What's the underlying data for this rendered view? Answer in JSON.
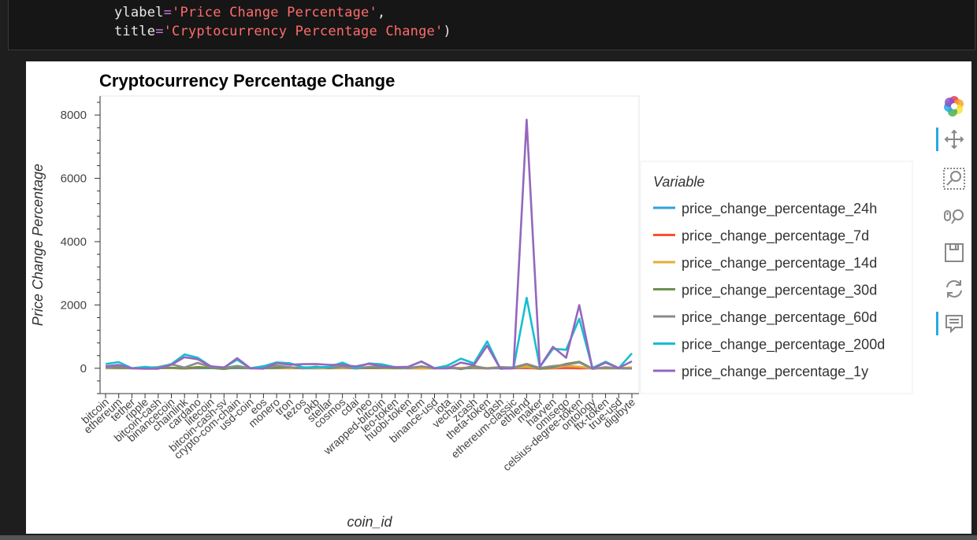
{
  "code": {
    "line1": {
      "kw": "ylabel",
      "eq": "=",
      "str": "'Price Change Percentage'",
      "pn": ","
    },
    "line2": {
      "kw": "title",
      "eq": "=",
      "str": "'Cryptocurrency Percentage Change'",
      "pn": ")"
    }
  },
  "toolbar": {
    "icons": [
      "bokeh-logo-icon",
      "pan-icon",
      "box-zoom-icon",
      "wheel-zoom-icon",
      "save-icon",
      "reset-icon",
      "hover-icon"
    ]
  },
  "colors": {
    "price_change_percentage_24h": "#30a2da",
    "price_change_percentage_7d": "#fc4f30",
    "price_change_percentage_14d": "#e5ae38",
    "price_change_percentage_30d": "#6d904f",
    "price_change_percentage_60d": "#8b8b8b",
    "price_change_percentage_200d": "#17becf",
    "price_change_percentage_1y": "#9467bd",
    "accent": "#26aae1"
  },
  "chart_data": {
    "type": "line",
    "title": "Cryptocurrency Percentage Change",
    "xlabel": "coin_id",
    "ylabel": "Price Change Percentage",
    "ylim": [
      -800,
      8600
    ],
    "yticks": [
      0,
      2000,
      4000,
      6000,
      8000
    ],
    "grid": false,
    "legend_title": "Variable",
    "legend_position": "right",
    "categories": [
      "bitcoin",
      "ethereum",
      "tether",
      "ripple",
      "bitcoin-cash",
      "binancecoin",
      "chainlink",
      "cardano",
      "litecoin",
      "bitcoin-cash-sv",
      "crypto-com-chain",
      "usd-coin",
      "eos",
      "monero",
      "tron",
      "tezos",
      "okb",
      "stellar",
      "cosmos",
      "cdai",
      "neo",
      "wrapped-bitcoin",
      "leo-token",
      "huobi-token",
      "nem",
      "binance-usd",
      "iota",
      "vechain",
      "zcash",
      "theta-token",
      "dash",
      "ethereum-classic",
      "ethlend",
      "maker",
      "havven",
      "omisego",
      "celsius-degree-token",
      "ontology",
      "ftx-token",
      "true-usd",
      "digibyte"
    ],
    "series": [
      {
        "name": "price_change_percentage_24h",
        "values": [
          1,
          0,
          0,
          0,
          3,
          2,
          -1,
          0,
          2,
          1,
          2,
          0,
          1,
          0,
          0,
          1,
          -1,
          0,
          1,
          0,
          2,
          1,
          0,
          0,
          -1,
          0,
          0,
          0,
          1,
          -2,
          0,
          1,
          0,
          0,
          1,
          1,
          -4,
          0,
          0,
          0,
          -1
        ]
      },
      {
        "name": "price_change_percentage_7d",
        "values": [
          7,
          11,
          0,
          6,
          12,
          6,
          -9,
          20,
          15,
          14,
          23,
          0,
          7,
          8,
          1,
          8,
          15,
          11,
          12,
          2,
          9,
          4,
          2,
          3,
          5,
          0,
          8,
          14,
          17,
          -6,
          19,
          8,
          14,
          -14,
          -2,
          10,
          -4,
          4,
          -2,
          0,
          19
        ]
      },
      {
        "name": "price_change_percentage_14d",
        "values": [
          7,
          10,
          0,
          -6,
          11,
          7,
          -2,
          40,
          21,
          35,
          36,
          0,
          11,
          16,
          1,
          28,
          -1,
          10,
          14,
          1,
          24,
          7,
          -5,
          2,
          -8,
          0,
          20,
          11,
          27,
          5,
          35,
          23,
          50,
          -5,
          8,
          78,
          51,
          -5,
          5,
          0,
          27
        ]
      },
      {
        "name": "price_change_percentage_30d",
        "values": [
          29,
          15,
          0,
          -2,
          3,
          18,
          -4,
          36,
          9,
          -23,
          35,
          0,
          5,
          19,
          30,
          7,
          51,
          5,
          50,
          -4,
          16,
          23,
          5,
          9,
          60,
          0,
          30,
          -28,
          50,
          -3,
          36,
          16,
          122,
          -17,
          27,
          138,
          206,
          -10,
          14,
          0,
          -8
        ]
      },
      {
        "name": "price_change_percentage_60d",
        "values": [
          23,
          68,
          0,
          10,
          39,
          124,
          23,
          169,
          38,
          11,
          76,
          0,
          12,
          87,
          30,
          -4,
          19,
          35,
          50,
          -9,
          46,
          46,
          41,
          -4,
          55,
          0,
          38,
          -13,
          73,
          -6,
          29,
          29,
          138,
          10,
          69,
          111,
          183,
          -18,
          35,
          0,
          -8
        ]
      },
      {
        "name": "price_change_percentage_200d",
        "values": [
          134,
          195,
          0,
          43,
          7,
          132,
          436,
          335,
          60,
          26,
          269,
          1,
          65,
          186,
          159,
          33,
          26,
          45,
          181,
          5,
          152,
          124,
          32,
          42,
          215,
          0,
          88,
          303,
          158,
          848,
          -16,
          3,
          2227,
          43,
          616,
          584,
          1565,
          7,
          205,
          2,
          472
        ]
      },
      {
        "name": "price_change_percentage_1y",
        "values": [
          62,
          106,
          0,
          -14,
          -14,
          109,
          348,
          284,
          64,
          20,
          320,
          0,
          -11,
          166,
          110,
          131,
          134,
          108,
          111,
          57,
          140,
          63,
          34,
          42,
          211,
          0,
          -5,
          179,
          100,
          714,
          -12,
          -3,
          7852,
          42,
          678,
          332,
          1994,
          -13,
          177,
          7,
          219
        ]
      }
    ]
  }
}
